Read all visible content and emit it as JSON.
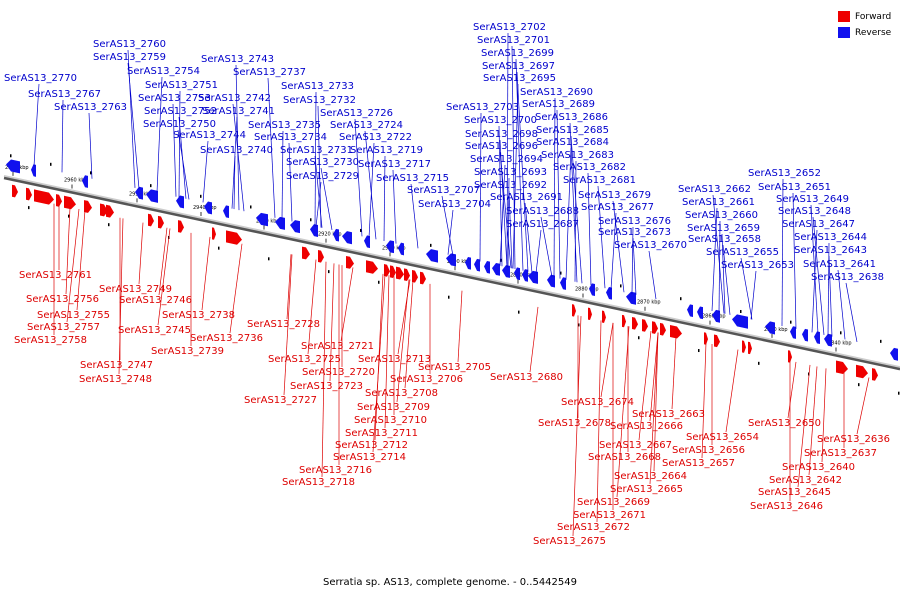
{
  "legend": {
    "forward": {
      "label": "Forward",
      "color": "#ee0000"
    },
    "reverse": {
      "label": "Reverse",
      "color": "#1111ee"
    }
  },
  "caption": "Serratia sp. AS13, complete genome. - 0..5442549",
  "scale_labels": [
    "2970 kbp",
    "2960 kbp",
    "2950 kbp",
    "2940 kbp",
    "2930 kbp",
    "2920 kbp",
    "2910 kbp",
    "2900 kbp",
    "2890 kbp",
    "2880 kbp",
    "2870 kbp",
    "2860 kbp",
    "2850 kbp",
    "2840 kbp"
  ],
  "reverse_genes": [
    "SerAS13_2770",
    "SerAS13_2767",
    "SerAS13_2763",
    "SerAS13_2760",
    "SerAS13_2759",
    "SerAS13_2754",
    "SerAS13_2751",
    "SerAS13_2753",
    "SerAS13_2752",
    "SerAS13_2750",
    "SerAS13_2744",
    "SerAS13_2740",
    "SerAS13_2743",
    "SerAS13_2737",
    "SerAS13_2742",
    "SerAS13_2741",
    "SerAS13_2735",
    "SerAS13_2734",
    "SerAS13_2731",
    "SerAS13_2730",
    "SerAS13_2729",
    "SerAS13_2733",
    "SerAS13_2732",
    "SerAS13_2726",
    "SerAS13_2724",
    "SerAS13_2722",
    "SerAS13_2719",
    "SerAS13_2717",
    "SerAS13_2715",
    "SerAS13_2707",
    "SerAS13_2704",
    "SerAS13_2702",
    "SerAS13_2701",
    "SerAS13_2699",
    "SerAS13_2697",
    "SerAS13_2695",
    "SerAS13_2703",
    "SerAS13_2700",
    "SerAS13_2698",
    "SerAS13_2696",
    "SerAS13_2694",
    "SerAS13_2693",
    "SerAS13_2692",
    "SerAS13_2691",
    "SerAS13_2688",
    "SerAS13_2687",
    "SerAS13_2690",
    "SerAS13_2689",
    "SerAS13_2686",
    "SerAS13_2685",
    "SerAS13_2684",
    "SerAS13_2683",
    "SerAS13_2682",
    "SerAS13_2681",
    "SerAS13_2679",
    "SerAS13_2677",
    "SerAS13_2676",
    "SerAS13_2673",
    "SerAS13_2670",
    "SerAS13_2662",
    "SerAS13_2661",
    "SerAS13_2660",
    "SerAS13_2659",
    "SerAS13_2658",
    "SerAS13_2655",
    "SerAS13_2653",
    "SerAS13_2652",
    "SerAS13_2651",
    "SerAS13_2649",
    "SerAS13_2648",
    "SerAS13_2647",
    "SerAS13_2644",
    "SerAS13_2643",
    "SerAS13_2641",
    "SerAS13_2638"
  ],
  "forward_genes": [
    "SerAS13_2761",
    "SerAS13_2756",
    "SerAS13_2755",
    "SerAS13_2757",
    "SerAS13_2758",
    "SerAS13_2749",
    "SerAS13_2746",
    "SerAS13_2745",
    "SerAS13_2747",
    "SerAS13_2748",
    "SerAS13_2738",
    "SerAS13_2736",
    "SerAS13_2739",
    "SerAS13_2728",
    "SerAS13_2725",
    "SerAS13_2721",
    "SerAS13_2720",
    "SerAS13_2723",
    "SerAS13_2727",
    "SerAS13_2713",
    "SerAS13_2706",
    "SerAS13_2705",
    "SerAS13_2708",
    "SerAS13_2709",
    "SerAS13_2710",
    "SerAS13_2711",
    "SerAS13_2712",
    "SerAS13_2714",
    "SerAS13_2716",
    "SerAS13_2718",
    "SerAS13_2680",
    "SerAS13_2674",
    "SerAS13_2678",
    "SerAS13_2663",
    "SerAS13_2666",
    "SerAS13_2667",
    "SerAS13_2668",
    "SerAS13_2664",
    "SerAS13_2665",
    "SerAS13_2669",
    "SerAS13_2671",
    "SerAS13_2672",
    "SerAS13_2675",
    "SerAS13_2654",
    "SerAS13_2656",
    "SerAS13_2657",
    "SerAS13_2650",
    "SerAS13_2636",
    "SerAS13_2637",
    "SerAS13_2640",
    "SerAS13_2642",
    "SerAS13_2645",
    "SerAS13_2646"
  ]
}
